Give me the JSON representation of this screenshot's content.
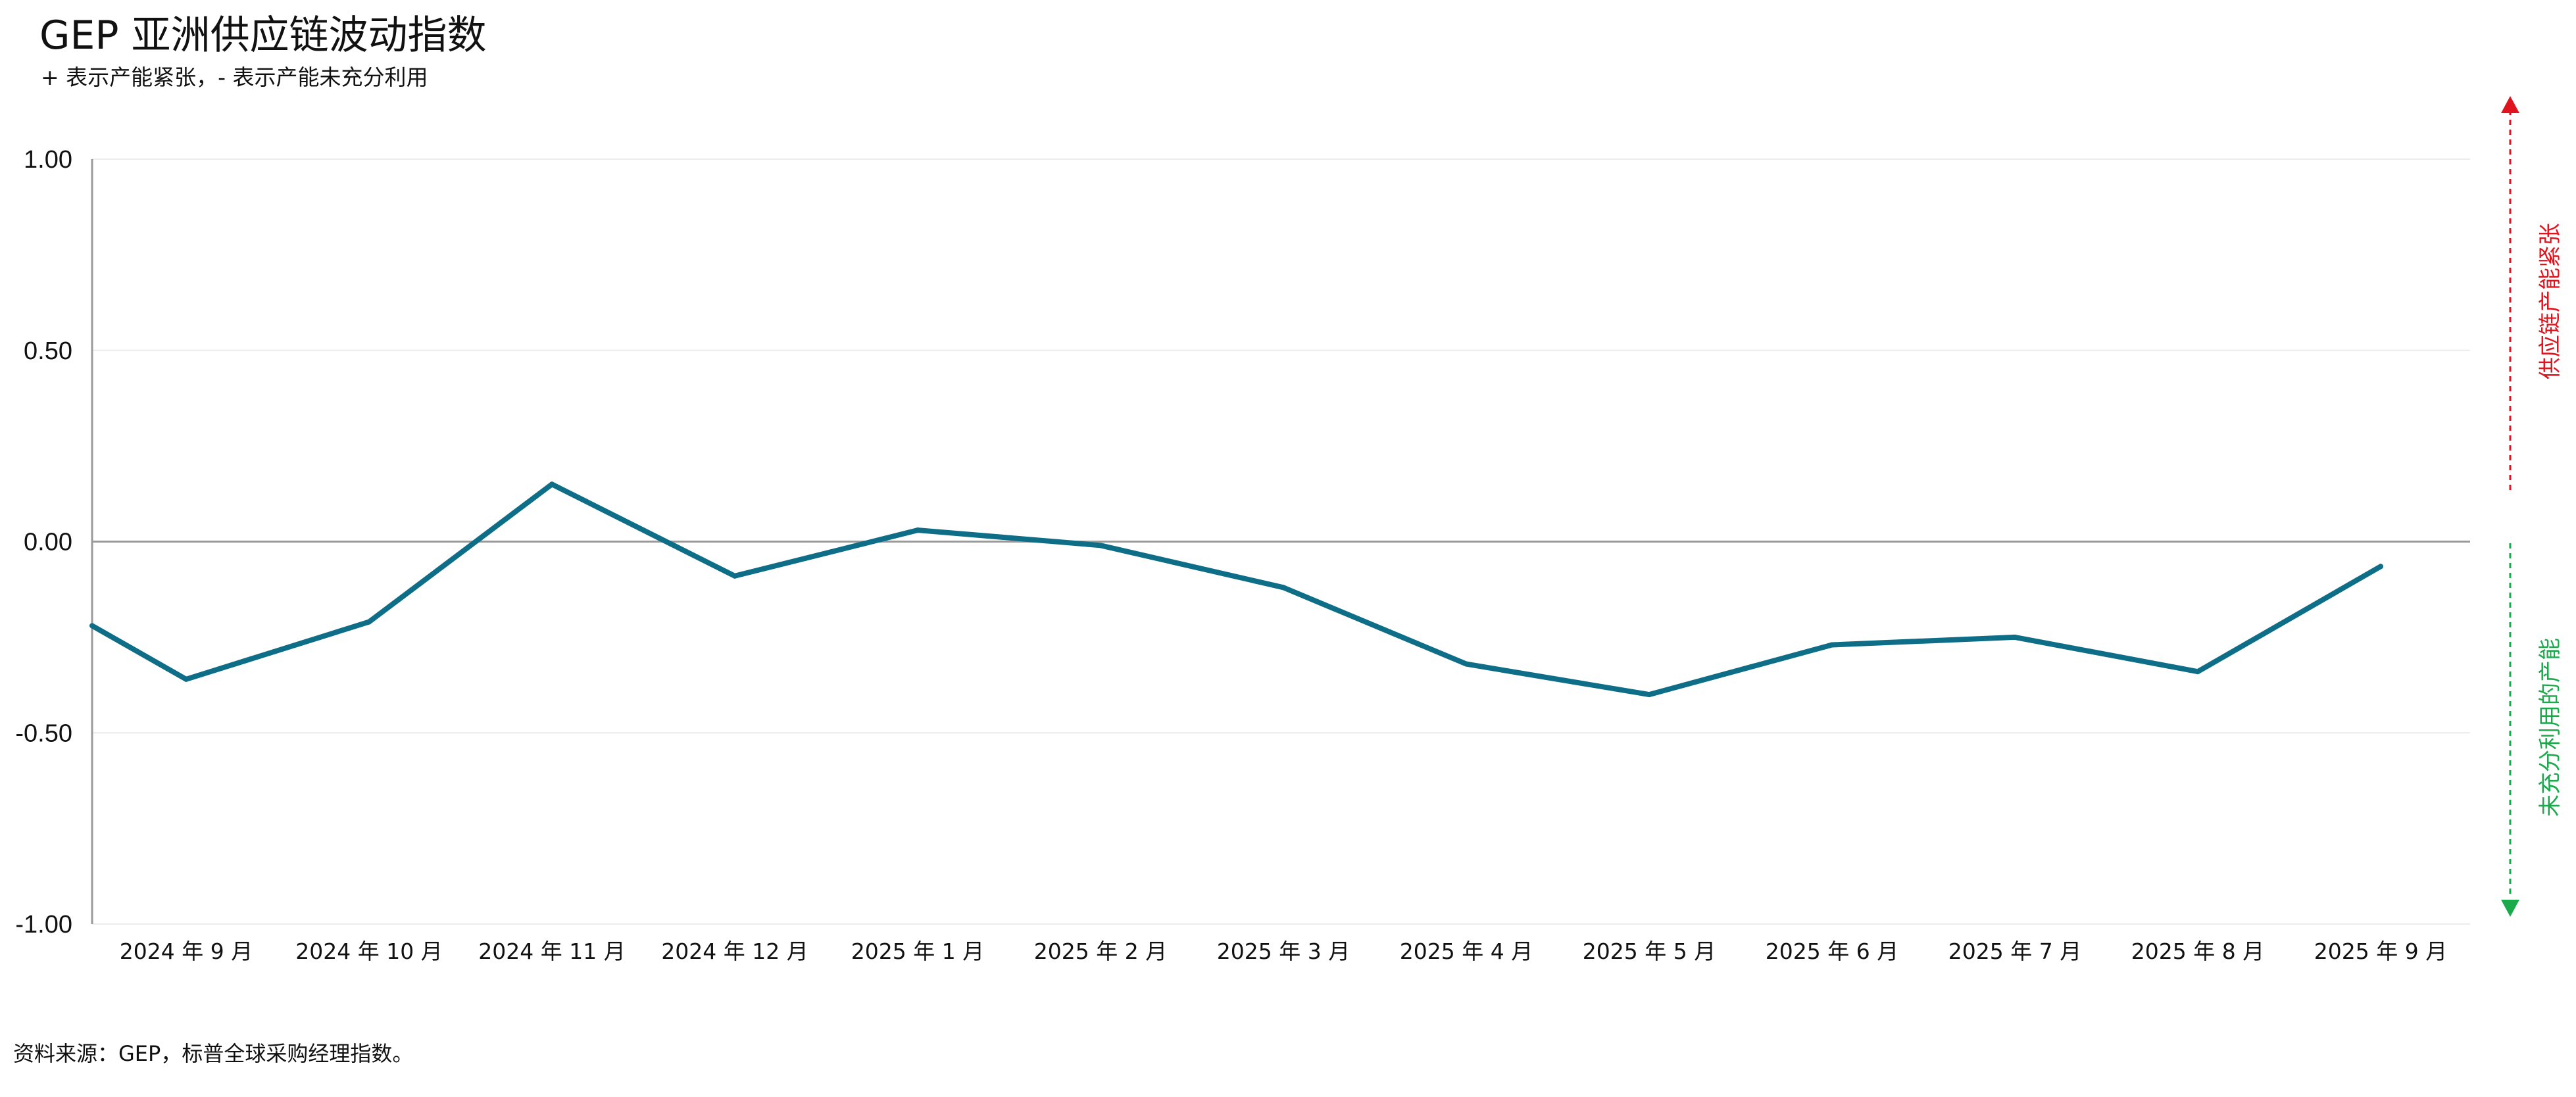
{
  "chart_data": {
    "type": "line",
    "title": "GEP 亚洲供应链波动指数",
    "subtitle": "+ 表示产能紧张，- 表示产能未充分利用",
    "xlabel": "",
    "ylabel": "",
    "ylim": [
      -1.0,
      1.0
    ],
    "yticks": [
      "1.00",
      "0.50",
      "0.00",
      "-0.50",
      "-1.00"
    ],
    "ytick_values": [
      1.0,
      0.5,
      0.0,
      -0.5,
      -1.0
    ],
    "categories": [
      "2024 年 9 月",
      "2024 年 10 月",
      "2024 年 11 月",
      "2024 年 12 月",
      "2025 年 1 月",
      "2025 年 2 月",
      "2025 年 3 月",
      "2025 年 4 月",
      "2025 年 5 月",
      "2025 年 6 月",
      "2025 年 7 月",
      "2025 年 8 月",
      "2025 年 9 月"
    ],
    "series": [
      {
        "values": [
          -0.36,
          -0.21,
          0.15,
          -0.09,
          0.03,
          -0.01,
          -0.12,
          -0.32,
          -0.4,
          -0.27,
          -0.25,
          -0.34,
          -0.065
        ],
        "leading_value": -0.22,
        "color": "#0f6e87"
      }
    ],
    "grid": true,
    "zero_line": true,
    "annotations": {
      "upper": {
        "text": "供应链产能紧张",
        "color": "#e0141e"
      },
      "lower": {
        "text": "未充分利用的产能",
        "color": "#1aaa4b"
      }
    },
    "source": "资料来源：GEP，标普全球采购经理指数。"
  }
}
